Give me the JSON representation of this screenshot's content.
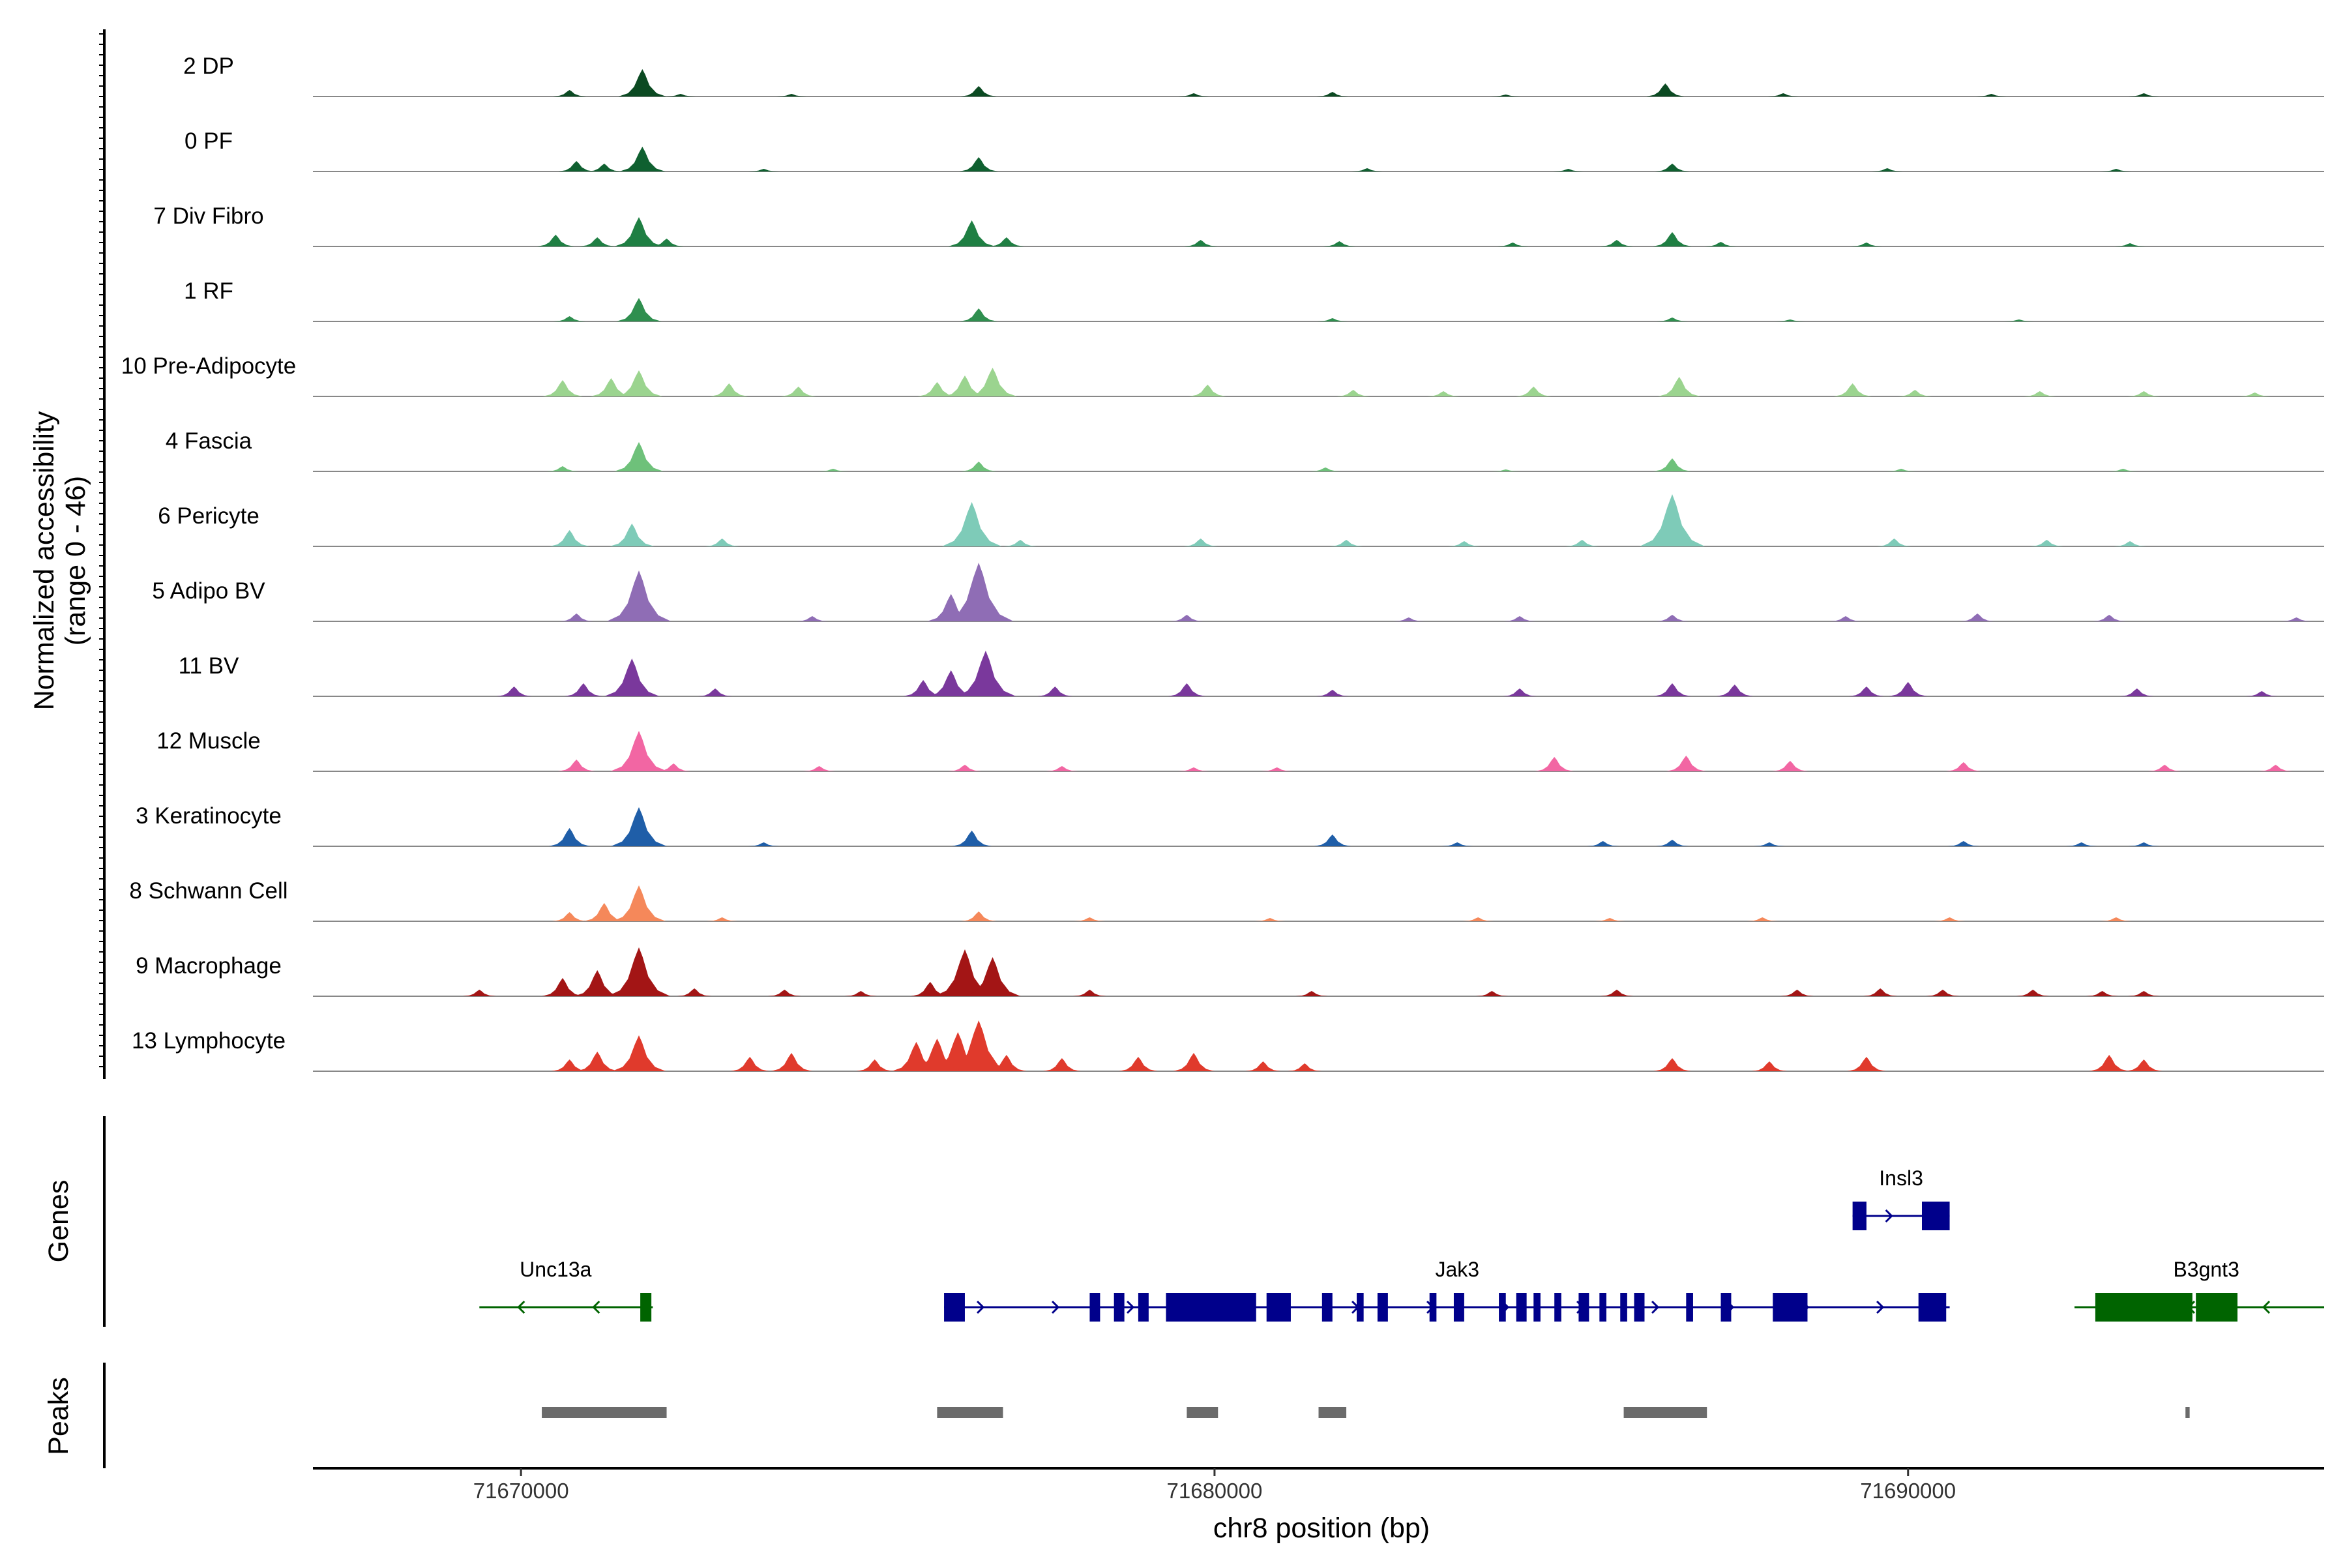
{
  "chart_data": {
    "type": "genome-coverage",
    "xlabel": "chr8 position (bp)",
    "ylabel": "Normalized accessibility",
    "ylabel_range": "(range 0 - 46)",
    "ylim": [
      0,
      46
    ],
    "xlim": [
      71667000,
      71696000
    ],
    "x_ticks": [
      71670000,
      71680000,
      71690000
    ],
    "x_tick_labels": [
      "71670000",
      "71680000",
      "71690000"
    ],
    "track_titles": {
      "genes": "Genes",
      "peaks": "Peaks"
    },
    "tracks": [
      {
        "name": "2 DP",
        "color": "#0b4a22",
        "peaks": [
          [
            71671.75,
            42
          ],
          [
            71676.6,
            16
          ],
          [
            71686.5,
            20
          ],
          [
            71670.7,
            10
          ],
          [
            71672.3,
            4
          ],
          [
            71673.9,
            4
          ],
          [
            71679.7,
            5
          ],
          [
            71681.7,
            7
          ],
          [
            71684.2,
            3
          ],
          [
            71688.2,
            5
          ],
          [
            71691.2,
            4
          ],
          [
            71693.4,
            5
          ]
        ]
      },
      {
        "name": "0 PF",
        "color": "#0f6030",
        "peaks": [
          [
            71671.75,
            38
          ],
          [
            71676.6,
            22
          ],
          [
            71686.6,
            12
          ],
          [
            71670.8,
            16
          ],
          [
            71671.2,
            12
          ],
          [
            71673.5,
            4
          ],
          [
            71682.2,
            5
          ],
          [
            71685.1,
            4
          ],
          [
            71689.7,
            5
          ],
          [
            71693.0,
            4
          ]
        ]
      },
      {
        "name": "7 Div Fibro",
        "color": "#1f7f43",
        "peaks": [
          [
            71671.7,
            45
          ],
          [
            71676.5,
            40
          ],
          [
            71686.6,
            22
          ],
          [
            71670.5,
            18
          ],
          [
            71671.1,
            14
          ],
          [
            71672.1,
            12
          ],
          [
            71677.0,
            14
          ],
          [
            71679.8,
            10
          ],
          [
            71681.8,
            8
          ],
          [
            71684.3,
            6
          ],
          [
            71685.8,
            10
          ],
          [
            71687.3,
            7
          ],
          [
            71689.4,
            6
          ],
          [
            71693.2,
            5
          ]
        ]
      },
      {
        "name": "1 RF",
        "color": "#2f8f4f",
        "peaks": [
          [
            71671.7,
            36
          ],
          [
            71676.6,
            20
          ],
          [
            71670.7,
            8
          ],
          [
            71681.7,
            5
          ],
          [
            71686.6,
            6
          ],
          [
            71688.3,
            3
          ],
          [
            71691.6,
            3
          ]
        ]
      },
      {
        "name": "10 Pre-Adipocyte",
        "color": "#9bd48f",
        "peaks": [
          [
            71671.7,
            40
          ],
          [
            71676.8,
            44
          ],
          [
            71676.4,
            32
          ],
          [
            71676.0,
            22
          ],
          [
            71670.6,
            25
          ],
          [
            71671.3,
            28
          ],
          [
            71673.0,
            20
          ],
          [
            71674.0,
            15
          ],
          [
            71679.9,
            18
          ],
          [
            71682.0,
            10
          ],
          [
            71683.3,
            8
          ],
          [
            71684.6,
            15
          ],
          [
            71686.7,
            30
          ],
          [
            71689.2,
            20
          ],
          [
            71690.1,
            10
          ],
          [
            71691.9,
            8
          ],
          [
            71693.4,
            8
          ],
          [
            71695.0,
            6
          ]
        ]
      },
      {
        "name": "4 Fascia",
        "color": "#6ec17a",
        "peaks": [
          [
            71671.7,
            45
          ],
          [
            71676.6,
            15
          ],
          [
            71686.6,
            20
          ],
          [
            71670.6,
            8
          ],
          [
            71674.5,
            4
          ],
          [
            71681.6,
            6
          ],
          [
            71684.2,
            3
          ],
          [
            71689.9,
            4
          ],
          [
            71693.1,
            4
          ]
        ]
      },
      {
        "name": "6 Pericyte",
        "color": "#7ecbb8",
        "peaks": [
          [
            71676.5,
            68
          ],
          [
            71686.6,
            80
          ],
          [
            71671.6,
            35
          ],
          [
            71670.7,
            25
          ],
          [
            71672.9,
            12
          ],
          [
            71677.2,
            10
          ],
          [
            71679.8,
            12
          ],
          [
            71681.9,
            10
          ],
          [
            71683.6,
            8
          ],
          [
            71685.3,
            10
          ],
          [
            71689.8,
            12
          ],
          [
            71692.0,
            10
          ],
          [
            71693.2,
            8
          ]
        ]
      },
      {
        "name": "5 Adipo BV",
        "color": "#8f6db5",
        "peaks": [
          [
            71676.6,
            90
          ],
          [
            71671.7,
            78
          ],
          [
            71676.2,
            42
          ],
          [
            71670.8,
            12
          ],
          [
            71674.2,
            8
          ],
          [
            71679.6,
            10
          ],
          [
            71682.8,
            6
          ],
          [
            71684.4,
            8
          ],
          [
            71686.6,
            10
          ],
          [
            71689.1,
            8
          ],
          [
            71691.0,
            12
          ],
          [
            71692.9,
            10
          ],
          [
            71695.6,
            6
          ]
        ]
      },
      {
        "name": "11 BV",
        "color": "#7a389c",
        "peaks": [
          [
            71671.6,
            58
          ],
          [
            71676.7,
            70
          ],
          [
            71676.2,
            40
          ],
          [
            71675.8,
            25
          ],
          [
            71669.9,
            15
          ],
          [
            71670.9,
            20
          ],
          [
            71672.8,
            12
          ],
          [
            71677.7,
            15
          ],
          [
            71679.6,
            20
          ],
          [
            71681.7,
            10
          ],
          [
            71684.4,
            12
          ],
          [
            71686.6,
            20
          ],
          [
            71687.5,
            18
          ],
          [
            71689.4,
            15
          ],
          [
            71690.0,
            22
          ],
          [
            71693.3,
            12
          ],
          [
            71695.1,
            8
          ]
        ]
      },
      {
        "name": "12 Muscle",
        "color": "#f266a3",
        "peaks": [
          [
            71671.7,
            62
          ],
          [
            71670.8,
            18
          ],
          [
            71672.2,
            12
          ],
          [
            71674.3,
            8
          ],
          [
            71676.4,
            10
          ],
          [
            71677.8,
            8
          ],
          [
            71679.7,
            6
          ],
          [
            71680.9,
            6
          ],
          [
            71684.9,
            22
          ],
          [
            71686.8,
            24
          ],
          [
            71688.3,
            16
          ],
          [
            71690.8,
            14
          ],
          [
            71693.7,
            10
          ],
          [
            71695.3,
            10
          ]
        ]
      },
      {
        "name": "3 Keratinocyte",
        "color": "#1f5ea8",
        "peaks": [
          [
            71671.7,
            60
          ],
          [
            71670.7,
            28
          ],
          [
            71676.5,
            24
          ],
          [
            71681.7,
            18
          ],
          [
            71673.5,
            6
          ],
          [
            71683.5,
            6
          ],
          [
            71685.6,
            8
          ],
          [
            71686.6,
            10
          ],
          [
            71688.0,
            6
          ],
          [
            71690.8,
            8
          ],
          [
            71692.5,
            6
          ],
          [
            71693.4,
            6
          ]
        ]
      },
      {
        "name": "8 Schwann Cell",
        "color": "#f5885a",
        "peaks": [
          [
            71671.7,
            55
          ],
          [
            71671.2,
            28
          ],
          [
            71670.7,
            14
          ],
          [
            71676.6,
            15
          ],
          [
            71672.9,
            6
          ],
          [
            71678.2,
            6
          ],
          [
            71680.8,
            5
          ],
          [
            71683.8,
            6
          ],
          [
            71685.7,
            5
          ],
          [
            71687.9,
            6
          ],
          [
            71690.6,
            6
          ],
          [
            71693.0,
            6
          ]
        ]
      },
      {
        "name": "9 Macrophage",
        "color": "#a31515",
        "peaks": [
          [
            71671.7,
            75
          ],
          [
            71676.4,
            72
          ],
          [
            71676.8,
            60
          ],
          [
            71671.1,
            40
          ],
          [
            71670.6,
            28
          ],
          [
            71669.4,
            10
          ],
          [
            71672.5,
            12
          ],
          [
            71673.8,
            10
          ],
          [
            71674.9,
            8
          ],
          [
            71675.9,
            22
          ],
          [
            71678.2,
            10
          ],
          [
            71681.4,
            8
          ],
          [
            71684.0,
            8
          ],
          [
            71685.8,
            10
          ],
          [
            71688.4,
            10
          ],
          [
            71689.6,
            12
          ],
          [
            71690.5,
            10
          ],
          [
            71691.8,
            10
          ],
          [
            71692.8,
            8
          ],
          [
            71693.4,
            8
          ]
        ]
      },
      {
        "name": "13 Lymphocyte",
        "color": "#e03a2c",
        "peaks": [
          [
            71671.7,
            55
          ],
          [
            71676.6,
            78
          ],
          [
            71676.3,
            60
          ],
          [
            71676.0,
            50
          ],
          [
            71675.7,
            45
          ],
          [
            71671.1,
            30
          ],
          [
            71670.7,
            18
          ],
          [
            71673.3,
            22
          ],
          [
            71673.9,
            28
          ],
          [
            71675.1,
            18
          ],
          [
            71677.0,
            25
          ],
          [
            71677.8,
            20
          ],
          [
            71678.9,
            22
          ],
          [
            71679.7,
            28
          ],
          [
            71680.7,
            15
          ],
          [
            71681.3,
            12
          ],
          [
            71686.6,
            20
          ],
          [
            71688.0,
            15
          ],
          [
            71689.4,
            22
          ],
          [
            71692.9,
            25
          ],
          [
            71693.4,
            18
          ]
        ]
      }
    ],
    "genes": [
      {
        "name": "Unc13a",
        "strand": "-",
        "color": "#006400",
        "row": 2,
        "start": 71669.4,
        "end": 71671.9,
        "exons": [
          [
            71671.72,
            71671.88
          ]
        ],
        "label_x": 71670.5
      },
      {
        "name": "Jak3",
        "strand": "+",
        "color": "#00008b",
        "row": 2,
        "start": 71676.1,
        "end": 71690.6,
        "exons": [
          [
            71676.1,
            71676.4
          ],
          [
            71678.2,
            71678.35
          ],
          [
            71678.55,
            71678.7
          ],
          [
            71678.9,
            71679.05
          ],
          [
            71679.3,
            71680.6
          ],
          [
            71680.75,
            71681.1
          ],
          [
            71681.55,
            71681.7
          ],
          [
            71682.05,
            71682.15
          ],
          [
            71682.35,
            71682.5
          ],
          [
            71683.1,
            71683.2
          ],
          [
            71683.45,
            71683.6
          ],
          [
            71684.1,
            71684.2
          ],
          [
            71684.35,
            71684.5
          ],
          [
            71684.6,
            71684.7
          ],
          [
            71684.9,
            71685.0
          ],
          [
            71685.25,
            71685.4
          ],
          [
            71685.55,
            71685.65
          ],
          [
            71685.85,
            71685.95
          ],
          [
            71686.05,
            71686.2
          ],
          [
            71686.8,
            71686.9
          ],
          [
            71687.3,
            71687.45
          ],
          [
            71688.05,
            71688.55
          ],
          [
            71690.15,
            71690.55
          ]
        ],
        "label_x": 71683.5
      },
      {
        "name": "Insl3",
        "strand": "+",
        "color": "#00008b",
        "row": 1,
        "start": 71689.2,
        "end": 71690.6,
        "exons": [
          [
            71689.2,
            71689.4
          ],
          [
            71690.2,
            71690.6
          ]
        ],
        "label_x": 71689.9
      },
      {
        "name": "B3gnt3",
        "strand": "-",
        "color": "#006400",
        "row": 2,
        "start": 71692.4,
        "end": 71696.0,
        "exons": [
          [
            71692.7,
            71694.1
          ],
          [
            71694.15,
            71694.75
          ]
        ],
        "label_x": 71694.3
      }
    ],
    "peak_regions": [
      [
        71670.3,
        71672.1
      ],
      [
        71676.0,
        71676.95
      ],
      [
        71679.6,
        71680.05
      ],
      [
        71681.5,
        71681.9
      ],
      [
        71685.9,
        71687.1
      ],
      [
        71694.0,
        71694.06
      ]
    ]
  }
}
